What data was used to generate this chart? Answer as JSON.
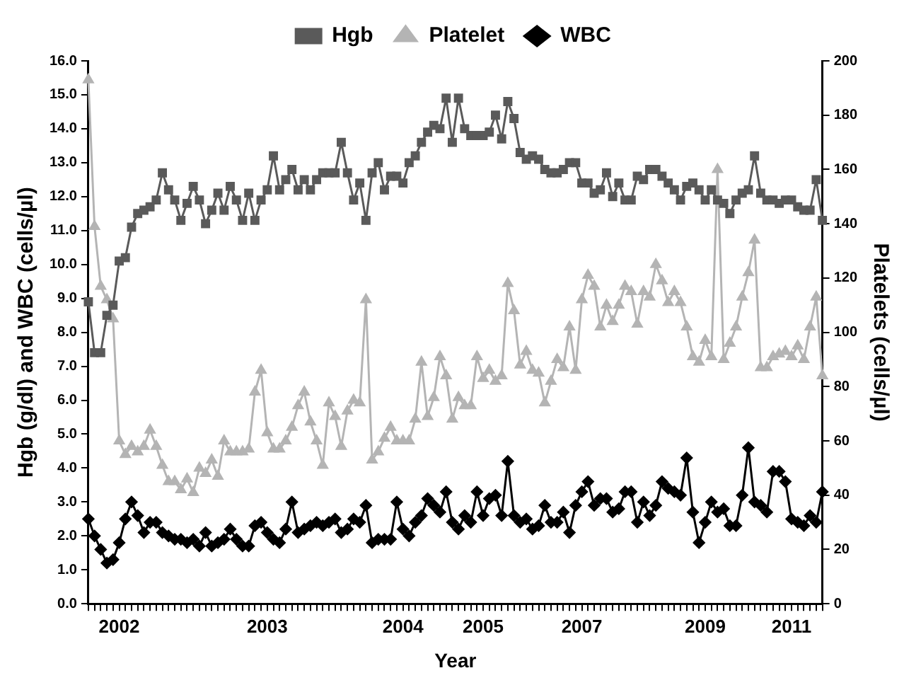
{
  "chart_data": {
    "type": "line",
    "xlabel": "Year",
    "ylabel": "Hgb (g/dl) and WBC (cells/µl)",
    "y2label": "Platelets (cells/µl)",
    "categories": [
      null,
      null,
      null,
      null,
      null,
      "2002",
      null,
      null,
      null,
      null,
      null,
      null,
      null,
      null,
      null,
      null,
      null,
      null,
      null,
      null,
      null,
      null,
      null,
      null,
      null,
      null,
      null,
      null,
      null,
      "2003",
      null,
      null,
      null,
      null,
      null,
      null,
      null,
      null,
      null,
      null,
      null,
      null,
      null,
      null,
      null,
      null,
      null,
      null,
      null,
      null,
      null,
      "2004",
      null,
      null,
      null,
      null,
      null,
      null,
      null,
      null,
      null,
      null,
      null,
      null,
      "2005",
      null,
      null,
      null,
      null,
      null,
      null,
      null,
      null,
      null,
      null,
      null,
      null,
      null,
      null,
      null,
      "2007",
      null,
      null,
      null,
      null,
      null,
      null,
      null,
      null,
      null,
      null,
      null,
      null,
      null,
      null,
      null,
      null,
      null,
      null,
      null,
      "2009",
      null,
      null,
      null,
      null,
      null,
      null,
      null,
      null,
      null,
      null,
      null,
      null,
      null,
      "2011",
      null,
      null,
      null,
      null,
      null
    ],
    "series": [
      {
        "name": "Hgb",
        "color": "#5a5a5a",
        "marker": "square",
        "values": [
          8.9,
          7.4,
          7.4,
          8.5,
          8.8,
          10.1,
          10.2,
          11.1,
          11.5,
          11.6,
          11.7,
          11.9,
          12.7,
          12.2,
          11.9,
          11.3,
          11.8,
          12.3,
          11.9,
          11.2,
          11.6,
          12.1,
          11.6,
          12.3,
          11.9,
          11.3,
          12.1,
          11.3,
          11.9,
          12.2,
          13.2,
          12.2,
          12.5,
          12.8,
          12.2,
          12.5,
          12.2,
          12.5,
          12.7,
          12.7,
          12.7,
          13.6,
          12.7,
          11.9,
          12.4,
          11.3,
          12.7,
          13.0,
          12.2,
          12.6,
          12.6,
          12.4,
          13.0,
          13.2,
          13.6,
          13.9,
          14.1,
          14.0,
          14.9,
          13.6,
          14.9,
          14.0,
          13.8,
          13.8,
          13.8,
          13.9,
          14.4,
          13.7,
          14.8,
          14.3,
          13.3,
          13.1,
          13.2,
          13.1,
          12.8,
          12.7,
          12.7,
          12.8,
          13.0,
          13.0,
          12.4,
          12.4,
          12.1,
          12.2,
          12.7,
          12.0,
          12.4,
          11.9,
          11.9,
          12.6,
          12.5,
          12.8,
          12.8,
          12.6,
          12.4,
          12.2,
          11.9,
          12.3,
          12.4,
          12.2,
          11.9,
          12.2,
          11.9,
          11.8,
          11.5,
          11.9,
          12.1,
          12.2,
          13.2,
          12.1,
          11.9,
          11.9,
          11.8,
          11.9,
          11.9,
          11.7,
          11.6,
          11.6,
          12.5,
          11.3
        ]
      },
      {
        "name": "Platelet",
        "color": "#b4b4b4",
        "marker": "triangle",
        "axis": "y2",
        "values": [
          193,
          139,
          117,
          112,
          105,
          60,
          55,
          58,
          56,
          58,
          64,
          58,
          51,
          45,
          45,
          42,
          46,
          41,
          50,
          48,
          53,
          47,
          60,
          56,
          56,
          56,
          57,
          78,
          86,
          63,
          57,
          57,
          60,
          65,
          73,
          78,
          67,
          60,
          51,
          74,
          69,
          58,
          71,
          75,
          74,
          112,
          53,
          56,
          61,
          65,
          60,
          60,
          60,
          68,
          89,
          69,
          76,
          91,
          84,
          68,
          76,
          73,
          73,
          91,
          83,
          86,
          82,
          84,
          118,
          108,
          88,
          93,
          86,
          85,
          74,
          82,
          90,
          87,
          102,
          86,
          112,
          121,
          117,
          102,
          110,
          104,
          110,
          117,
          115,
          103,
          115,
          113,
          125,
          119,
          111,
          115,
          111,
          102,
          91,
          89,
          97,
          91,
          160,
          90,
          96,
          102,
          113,
          122,
          134,
          87,
          87,
          91,
          92,
          93,
          91,
          95,
          90,
          102,
          113,
          84
        ]
      },
      {
        "name": "WBC",
        "color": "#000000",
        "marker": "diamond",
        "values": [
          2.5,
          2.0,
          1.6,
          1.2,
          1.3,
          1.8,
          2.5,
          3.0,
          2.6,
          2.1,
          2.4,
          2.4,
          2.1,
          2.0,
          1.9,
          1.9,
          1.8,
          1.9,
          1.7,
          2.1,
          1.7,
          1.8,
          1.9,
          2.2,
          1.9,
          1.7,
          1.7,
          2.3,
          2.4,
          2.1,
          1.9,
          1.8,
          2.2,
          3.0,
          2.1,
          2.2,
          2.3,
          2.4,
          2.3,
          2.4,
          2.5,
          2.1,
          2.2,
          2.5,
          2.4,
          2.9,
          1.8,
          1.9,
          1.9,
          1.9,
          3.0,
          2.2,
          2.0,
          2.4,
          2.6,
          3.1,
          2.9,
          2.7,
          3.3,
          2.4,
          2.2,
          2.6,
          2.4,
          3.3,
          2.6,
          3.1,
          3.2,
          2.6,
          4.2,
          2.6,
          2.4,
          2.5,
          2.2,
          2.3,
          2.9,
          2.4,
          2.4,
          2.7,
          2.1,
          2.9,
          3.3,
          3.6,
          2.9,
          3.1,
          3.1,
          2.7,
          2.8,
          3.3,
          3.3,
          2.4,
          3.0,
          2.6,
          2.9,
          3.6,
          3.4,
          3.3,
          3.2,
          4.3,
          2.7,
          1.8,
          2.4,
          3.0,
          2.7,
          2.8,
          2.3,
          2.3,
          3.2,
          4.6,
          3.0,
          2.9,
          2.7,
          3.9,
          3.9,
          3.6,
          2.5,
          2.4,
          2.3,
          2.6,
          2.4,
          3.3
        ]
      }
    ],
    "ylim": [
      0,
      16
    ],
    "yticks": [
      {
        "value": 0,
        "label": "0.0"
      },
      {
        "value": 1,
        "label": "1.0"
      },
      {
        "value": 2,
        "label": "2.0"
      },
      {
        "value": 3,
        "label": "3.0"
      },
      {
        "value": 4,
        "label": "4.0"
      },
      {
        "value": 5,
        "label": "5.0"
      },
      {
        "value": 6,
        "label": "6.0"
      },
      {
        "value": 7,
        "label": "7.0"
      },
      {
        "value": 8,
        "label": "8.0"
      },
      {
        "value": 9,
        "label": "9.0"
      },
      {
        "value": 10,
        "label": "10.0"
      },
      {
        "value": 11,
        "label": "11.0"
      },
      {
        "value": 12,
        "label": "12.0"
      },
      {
        "value": 13,
        "label": "13.0"
      },
      {
        "value": 14,
        "label": "14.0"
      },
      {
        "value": 15,
        "label": "15.0"
      },
      {
        "value": 16,
        "label": "16.0"
      }
    ],
    "y2lim": [
      0,
      200
    ],
    "y2ticks": [
      0,
      20,
      40,
      60,
      80,
      100,
      120,
      140,
      160,
      180,
      200
    ],
    "grid": false,
    "legend": "top",
    "line_style": "solid"
  }
}
